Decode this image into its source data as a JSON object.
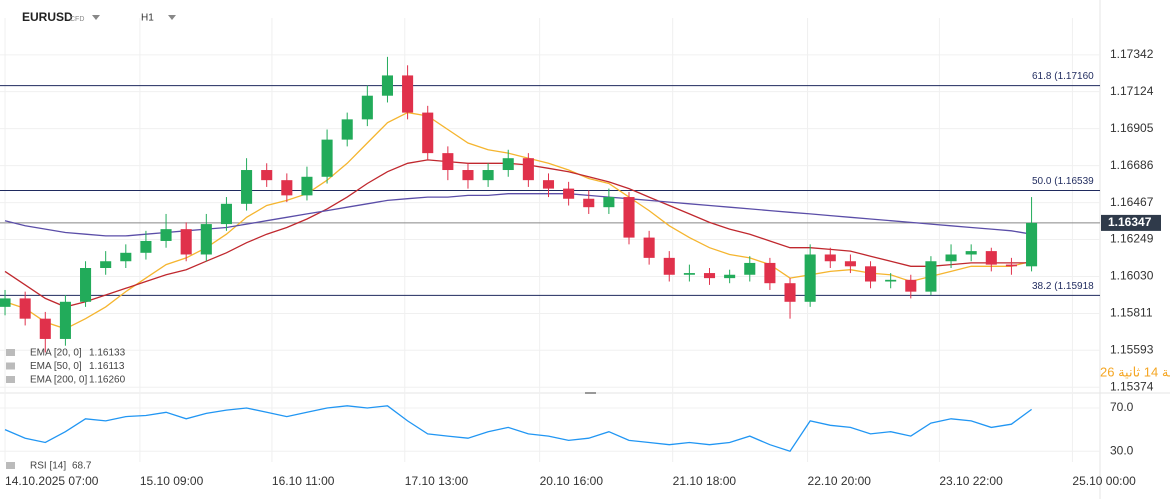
{
  "header": {
    "symbol": "EURUSD",
    "kind": "CFD",
    "timeframe": "H1"
  },
  "countdown": "دقيقة 14 ثانية 26",
  "chart_data": [
    {
      "type": "candlestick",
      "up_color": "#22ab5a",
      "down_color": "#e0314b",
      "grid": true,
      "xlim": [
        -0.25,
        54.4
      ],
      "ylim": [
        1.1534,
        1.1756
      ],
      "yticks": [
        1.17342,
        1.17124,
        1.16905,
        1.16686,
        1.16467,
        1.16249,
        {
          "value": 1.1603,
          "label": "1.16030"
        },
        1.15811,
        1.15593,
        1.15374
      ],
      "open": [
        1.1585,
        1.159,
        1.1578,
        1.1566,
        1.1588,
        1.1608,
        1.1612,
        1.1617,
        1.1624,
        1.1631,
        1.1616,
        1.1634,
        1.1646,
        1.1666,
        1.166,
        1.1651,
        1.1662,
        1.1684,
        1.1696,
        1.171,
        1.1722,
        1.17,
        1.1676,
        1.1666,
        1.166,
        1.1666,
        1.1673,
        1.166,
        1.1655,
        1.1649,
        1.1644,
        1.165,
        1.1626,
        1.1614,
        1.1604,
        1.1605,
        1.1602,
        1.1604,
        1.1611,
        1.1599,
        1.1588,
        1.1616,
        1.1612,
        1.1609,
        1.16,
        1.1601,
        1.1594,
        1.1612,
        1.1616,
        1.1618,
        1.161,
        1.1609
      ],
      "high": [
        1.1595,
        1.1594,
        1.1582,
        1.1592,
        1.1612,
        1.1618,
        1.1622,
        1.163,
        1.164,
        1.1635,
        1.164,
        1.165,
        1.1673,
        1.167,
        1.1664,
        1.1668,
        1.169,
        1.17,
        1.1716,
        1.1733,
        1.1728,
        1.1704,
        1.168,
        1.167,
        1.167,
        1.1678,
        1.1676,
        1.1664,
        1.1659,
        1.1654,
        1.1655,
        1.1653,
        1.163,
        1.1618,
        1.161,
        1.1608,
        1.1607,
        1.1615,
        1.1614,
        1.1602,
        1.1622,
        1.162,
        1.1616,
        1.1612,
        1.1605,
        1.1604,
        1.1615,
        1.1622,
        1.1622,
        1.162,
        1.1614,
        1.165
      ],
      "low": [
        1.158,
        1.1574,
        1.1558,
        1.1562,
        1.1585,
        1.1604,
        1.1608,
        1.1613,
        1.162,
        1.1612,
        1.1612,
        1.163,
        1.1642,
        1.1656,
        1.1647,
        1.1648,
        1.1658,
        1.168,
        1.1692,
        1.1706,
        1.1696,
        1.1672,
        1.166,
        1.1655,
        1.1656,
        1.1662,
        1.1656,
        1.165,
        1.1645,
        1.164,
        1.164,
        1.1622,
        1.161,
        1.16,
        1.16,
        1.1598,
        1.1599,
        1.16,
        1.1595,
        1.1578,
        1.1585,
        1.1608,
        1.1605,
        1.1596,
        1.1596,
        1.159,
        1.1592,
        1.1608,
        1.1612,
        1.1606,
        1.1604,
        1.1606
      ],
      "close": [
        1.159,
        1.1578,
        1.1566,
        1.1588,
        1.1608,
        1.1612,
        1.1617,
        1.1624,
        1.1631,
        1.1616,
        1.1634,
        1.1646,
        1.1666,
        1.166,
        1.1651,
        1.1662,
        1.1684,
        1.1696,
        1.171,
        1.1722,
        1.17,
        1.1676,
        1.1666,
        1.166,
        1.1666,
        1.1673,
        1.166,
        1.1655,
        1.1649,
        1.1644,
        1.165,
        1.1626,
        1.1614,
        1.1604,
        1.1605,
        1.1602,
        1.1604,
        1.1611,
        1.1599,
        1.1588,
        1.1616,
        1.1612,
        1.1609,
        1.16,
        1.1601,
        1.1594,
        1.1612,
        1.1616,
        1.1618,
        1.161,
        1.1609,
        1.16347
      ],
      "series": [
        {
          "name": "EMA [20, 0]",
          "legend_value": 1.16133,
          "color": "#f5b52f",
          "values": [
            1.1588,
            1.1584,
            1.1576,
            1.1572,
            1.1578,
            1.1585,
            1.1594,
            1.1602,
            1.161,
            1.1614,
            1.162,
            1.1628,
            1.1638,
            1.1645,
            1.1648,
            1.1652,
            1.166,
            1.167,
            1.1682,
            1.1694,
            1.17,
            1.1698,
            1.169,
            1.1682,
            1.1678,
            1.1676,
            1.1673,
            1.167,
            1.1666,
            1.1661,
            1.1658,
            1.165,
            1.1642,
            1.1633,
            1.1626,
            1.162,
            1.1616,
            1.1614,
            1.161,
            1.1602,
            1.1604,
            1.1606,
            1.1607,
            1.1605,
            1.1604,
            1.16,
            1.1603,
            1.1606,
            1.1609,
            1.1609,
            1.1609,
            1.1612
          ]
        },
        {
          "name": "EMA [50, 0]",
          "legend_value": 1.16113,
          "color": "#c0282e",
          "values": [
            1.1606,
            1.1598,
            1.159,
            1.1585,
            1.1588,
            1.1592,
            1.1596,
            1.16,
            1.1604,
            1.1607,
            1.1612,
            1.1617,
            1.1623,
            1.1628,
            1.1632,
            1.1637,
            1.1643,
            1.165,
            1.1658,
            1.1665,
            1.167,
            1.1672,
            1.1671,
            1.167,
            1.167,
            1.167,
            1.1669,
            1.1667,
            1.1665,
            1.1662,
            1.1659,
            1.1655,
            1.165,
            1.1645,
            1.164,
            1.1635,
            1.1631,
            1.1628,
            1.1624,
            1.162,
            1.162,
            1.1619,
            1.1618,
            1.1615,
            1.1612,
            1.1609,
            1.1609,
            1.161,
            1.1611,
            1.1611,
            1.1611,
            1.1611
          ]
        },
        {
          "name": "EMA [200, 0]",
          "legend_value": {
            "value": 1.1626,
            "label": "1.16260"
          },
          "color": "#5b4ea8",
          "values": [
            1.1636,
            1.1633,
            1.1631,
            1.1629,
            1.1628,
            1.1627,
            1.1627,
            1.1628,
            1.1629,
            1.163,
            1.1631,
            1.1632,
            1.1634,
            1.1636,
            1.1638,
            1.164,
            1.1642,
            1.1644,
            1.1646,
            1.1648,
            1.1649,
            1.165,
            1.165,
            1.1651,
            1.1651,
            1.1652,
            1.1652,
            1.1652,
            1.1652,
            1.1651,
            1.165,
            1.1649,
            1.1648,
            1.1647,
            1.1646,
            1.1645,
            1.1644,
            1.1643,
            1.1642,
            1.1641,
            1.164,
            1.1639,
            1.1638,
            1.1637,
            1.1636,
            1.1635,
            1.1634,
            1.1633,
            1.1632,
            1.1631,
            1.163,
            1.1628
          ]
        }
      ],
      "levels": [
        {
          "label": "61.8 (1.17160",
          "value": 1.1716,
          "color": "#1f2a5e"
        },
        {
          "label": "50.0 (1.16539",
          "value": 1.16539,
          "color": "#1f2a5e"
        },
        {
          "label": "38.2 (1.15918",
          "value": 1.15918,
          "color": "#1f2a5e"
        }
      ],
      "last_price": 1.16347
    },
    {
      "type": "line",
      "grid": true,
      "xlim": [
        -0.25,
        54.4
      ],
      "ylim": [
        20,
        82
      ],
      "yticks": [
        {
          "value": 70,
          "label": "70.0"
        },
        {
          "value": 30,
          "label": "30.0"
        }
      ],
      "xticks": [
        {
          "value": 0,
          "label": "14.10.2025 07:00"
        },
        {
          "value": 6.7,
          "label": "15.10 09:00"
        },
        {
          "value": 13.26,
          "label": "16.10 11:00"
        },
        {
          "value": 19.86,
          "label": "17.10 13:00"
        },
        {
          "value": 26.56,
          "label": "20.10 16:00"
        },
        {
          "value": 33.17,
          "label": "21.10 18:00"
        },
        {
          "value": 39.87,
          "label": "22.10 20:00"
        },
        {
          "value": 46.42,
          "label": "23.10 22:00"
        },
        {
          "value": 53.03,
          "label": "25.10 00:00"
        }
      ],
      "series": [
        {
          "name": "RSI [14]",
          "legend_value": 68.7,
          "color": "#2196f3",
          "values": [
            50,
            42,
            38,
            48,
            60,
            58,
            62,
            63,
            66,
            60,
            65,
            68,
            70,
            66,
            62,
            66,
            70,
            72,
            70,
            72,
            58,
            46,
            44,
            42,
            48,
            52,
            46,
            44,
            40,
            42,
            48,
            40,
            38,
            36,
            38,
            36,
            38,
            44,
            36,
            30,
            58,
            54,
            52,
            46,
            48,
            44,
            56,
            60,
            58,
            52,
            55,
            68.7
          ]
        }
      ]
    }
  ]
}
